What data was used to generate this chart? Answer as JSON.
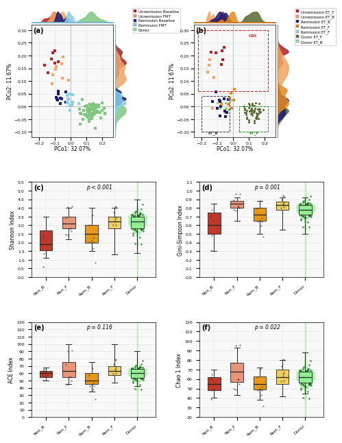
{
  "panel_labels": [
    "(a)",
    "(b)",
    "(c)",
    "(d)",
    "(e)",
    "(f)"
  ],
  "pcoa_xlabel": "PCo1: 32.07%",
  "pcoa_ylabel": "PCo2: 11.67%",
  "pcoa_xlim": [
    -0.25,
    0.25
  ],
  "pcoa_ylim": [
    -0.1,
    0.3
  ],
  "legend_a": [
    {
      "label": "Unremission Baseline",
      "color": "#B22222"
    },
    {
      "label": "Unremission FMT",
      "color": "#F4A460"
    },
    {
      "label": "Remission Baseline",
      "color": "#191970"
    },
    {
      "label": "Remission FMT",
      "color": "#87CEEB"
    },
    {
      "label": "Donor",
      "color": "#90EE90"
    }
  ],
  "legend_b": [
    {
      "label": "Unremission ET_F",
      "color": "#B22222"
    },
    {
      "label": "Unremission ET_B",
      "color": "#F4A460"
    },
    {
      "label": "Remission ET_B",
      "color": "#191970"
    },
    {
      "label": "Remission ET_F",
      "color": "#E8891A"
    },
    {
      "label": "Remission ET_F2",
      "color": "#ADD8E6"
    },
    {
      "label": "Donor ET_F",
      "color": "#556B2F"
    },
    {
      "label": "Donor ET_B",
      "color": "#90EE90"
    }
  ],
  "box_categories": [
    "Non_B",
    "Non_F",
    "Rem_B",
    "Rem_F",
    "Donor"
  ],
  "box_colors": [
    "#C0392B",
    "#E8967A",
    "#E8971A",
    "#F0D060",
    "#90EE90"
  ],
  "donor_violin_color": "#90EE90",
  "donor_dot_color": "#1a5c1a",
  "shannon_data": {
    "pvalue": "p < 0.001",
    "ylabel": "Shannon Index",
    "ylim": [
      0.0,
      5.5
    ],
    "yticks": [
      0.0,
      0.5,
      1.0,
      1.5,
      2.0,
      2.5,
      3.0,
      3.5,
      4.0,
      4.5,
      5.0,
      5.5
    ],
    "medians": [
      1.9,
      3.1,
      2.5,
      3.2,
      3.2
    ],
    "q1": [
      1.55,
      2.8,
      2.0,
      2.8,
      2.8
    ],
    "q3": [
      2.7,
      3.5,
      3.0,
      3.5,
      3.5
    ],
    "whisker_low": [
      1.1,
      2.2,
      1.5,
      1.3,
      1.4
    ],
    "whisker_high": [
      3.5,
      4.0,
      4.0,
      4.0,
      4.5
    ]
  },
  "gini_data": {
    "pvalue": "p = 0.001",
    "ylabel": "Gini-Simpson Index",
    "ylim": [
      0.0,
      1.1
    ],
    "yticks": [
      0.0,
      0.1,
      0.2,
      0.3,
      0.4,
      0.5,
      0.6,
      0.7,
      0.8,
      0.9,
      1.0,
      1.1
    ],
    "medians": [
      0.6,
      0.85,
      0.72,
      0.83,
      0.78
    ],
    "q1": [
      0.5,
      0.8,
      0.65,
      0.78,
      0.72
    ],
    "q3": [
      0.75,
      0.88,
      0.8,
      0.87,
      0.83
    ],
    "whisker_low": [
      0.3,
      0.65,
      0.5,
      0.55,
      0.5
    ],
    "whisker_high": [
      0.85,
      0.92,
      0.88,
      0.92,
      0.92
    ]
  },
  "ace_data": {
    "pvalue": "p = 0.116",
    "ylabel": "ACE Index",
    "ylim": [
      0,
      130
    ],
    "yticks": [
      0,
      10,
      20,
      30,
      40,
      50,
      60,
      70,
      80,
      90,
      100,
      110,
      120,
      130
    ],
    "medians": [
      60,
      63,
      50,
      63,
      60
    ],
    "q1": [
      55,
      55,
      45,
      57,
      54
    ],
    "q3": [
      63,
      75,
      60,
      70,
      66
    ],
    "whisker_low": [
      50,
      45,
      35,
      47,
      42
    ],
    "whisker_high": [
      68,
      100,
      75,
      100,
      90
    ]
  },
  "chao1_data": {
    "pvalue": "p = 0.022",
    "ylabel": "Chao 1 Index",
    "ylim": [
      20,
      120
    ],
    "yticks": [
      20,
      30,
      40,
      50,
      60,
      70,
      80,
      90,
      100,
      110,
      120
    ],
    "medians": [
      55,
      68,
      55,
      62,
      62
    ],
    "q1": [
      48,
      57,
      49,
      55,
      56
    ],
    "q3": [
      62,
      77,
      63,
      70,
      68
    ],
    "whisker_low": [
      40,
      43,
      38,
      42,
      45
    ],
    "whisker_high": [
      70,
      93,
      72,
      80,
      88
    ]
  },
  "bg_color": "#ffffff",
  "grid_color": "#dddddd",
  "font_size_label": 5.5,
  "font_size_tick": 4.5,
  "font_size_panel": 7,
  "font_size_legend": 4.0,
  "font_size_pval": 5.5
}
